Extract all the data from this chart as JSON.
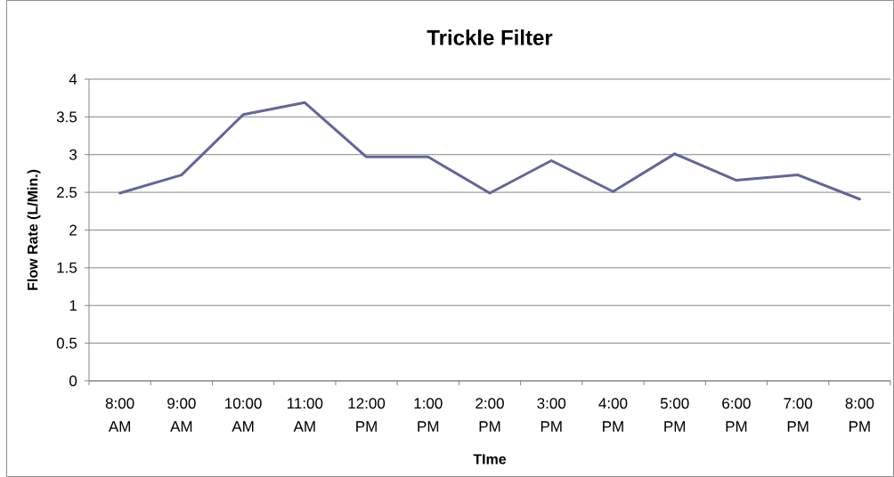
{
  "chart_data": {
    "type": "line",
    "title": "Trickle Filter",
    "xlabel": "TIme",
    "ylabel": "Flow Rate (L/Min.)",
    "categories": [
      "8:00 AM",
      "9:00 AM",
      "10:00 AM",
      "11:00 AM",
      "12:00 PM",
      "1:00 PM",
      "2:00 PM",
      "3:00 PM",
      "4:00 PM",
      "5:00 PM",
      "6:00 PM",
      "7:00 PM",
      "8:00 PM"
    ],
    "series": [
      {
        "color": "#64649c",
        "values": [
          2.49,
          2.73,
          3.53,
          3.69,
          2.97,
          2.97,
          2.49,
          2.92,
          2.51,
          3.01,
          2.66,
          2.73,
          2.41
        ]
      }
    ],
    "ylim": [
      0,
      4
    ],
    "yticks": [
      0,
      0.5,
      1,
      1.5,
      2,
      2.5,
      3,
      3.5,
      4
    ],
    "grid": "y",
    "marker": "none",
    "line_style": "solid"
  }
}
